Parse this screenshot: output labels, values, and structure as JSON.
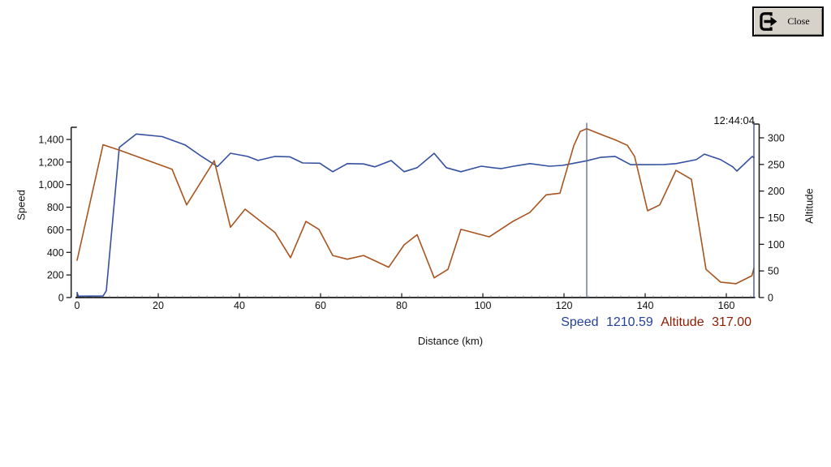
{
  "close_button": {
    "label": "Close"
  },
  "readout": {
    "speed_label": "Speed",
    "speed_value": "1210.59",
    "altitude_label": "Altitude",
    "altitude_value": "317.00"
  },
  "colors": {
    "speed_line": "#34519f",
    "altitude_line": "#a8541f",
    "speed_text": "#24419b",
    "altitude_text": "#8e1c04",
    "cursor_line": "#5c6b89",
    "end_line": "#3d4a72",
    "axis": "#1a1a1a",
    "minor_tick": "#999999",
    "button_face": "#d6d2ca"
  },
  "chart_data": {
    "type": "line",
    "timestamp": "12:44:04",
    "xlabel": "Distance (km)",
    "ylabel_left": "Speed",
    "ylabel_right": "Altitude",
    "grid": false,
    "legend": "none",
    "x_axis": {
      "min": 0,
      "max": 167,
      "ticks": [
        0,
        20,
        40,
        60,
        80,
        100,
        120,
        140,
        160
      ],
      "minor_tick_step": 2
    },
    "left_axis": {
      "min": 0,
      "max": 1400,
      "ticks": [
        0,
        200,
        400,
        600,
        800,
        1000,
        1200,
        1400
      ],
      "tick_labels": [
        "0",
        "200",
        "400",
        "600",
        "800",
        "1,000",
        "1,200",
        "1,400"
      ]
    },
    "right_axis": {
      "min": 0,
      "max": 300,
      "ticks": [
        0,
        50,
        100,
        150,
        200,
        250,
        300
      ],
      "tick_labels": [
        "0",
        "50",
        "100",
        "150",
        "200",
        "250",
        "300"
      ]
    },
    "cursor_km": 125.6,
    "end_km": 166.8,
    "cursor_values": {
      "Speed": 1210.59,
      "Altitude": 317.0
    },
    "series": [
      {
        "name": "Speed",
        "axis": "left",
        "color": "#34519f",
        "points": [
          [
            0,
            45
          ],
          [
            0.3,
            12
          ],
          [
            6.4,
            14
          ],
          [
            7.2,
            60
          ],
          [
            10.4,
            1330
          ],
          [
            14.6,
            1448
          ],
          [
            21,
            1425
          ],
          [
            26.6,
            1352
          ],
          [
            30.6,
            1252
          ],
          [
            34.6,
            1160
          ],
          [
            37.8,
            1278
          ],
          [
            42,
            1250
          ],
          [
            44.6,
            1214
          ],
          [
            48.8,
            1250
          ],
          [
            52.4,
            1246
          ],
          [
            55.6,
            1192
          ],
          [
            59.8,
            1190
          ],
          [
            63,
            1114
          ],
          [
            66.6,
            1186
          ],
          [
            70.6,
            1183
          ],
          [
            73.4,
            1157
          ],
          [
            77.4,
            1213
          ],
          [
            80.6,
            1114
          ],
          [
            83.8,
            1150
          ],
          [
            88,
            1277
          ],
          [
            91,
            1150
          ],
          [
            94.6,
            1114
          ],
          [
            99.6,
            1163
          ],
          [
            103,
            1147
          ],
          [
            104.6,
            1142
          ],
          [
            107.6,
            1163
          ],
          [
            111.6,
            1186
          ],
          [
            116.4,
            1163
          ],
          [
            119.6,
            1170
          ],
          [
            123,
            1193
          ],
          [
            125.6,
            1211
          ],
          [
            129,
            1241
          ],
          [
            132.6,
            1250
          ],
          [
            136.4,
            1177
          ],
          [
            140.6,
            1177
          ],
          [
            144.6,
            1178
          ],
          [
            147.6,
            1186
          ],
          [
            152.6,
            1221
          ],
          [
            154.6,
            1270
          ],
          [
            158.6,
            1221
          ],
          [
            161.6,
            1157
          ],
          [
            162.6,
            1120
          ],
          [
            166.4,
            1250
          ],
          [
            166.8,
            1238
          ]
        ]
      },
      {
        "name": "Altitude",
        "axis": "right",
        "color": "#a8541f",
        "points": [
          [
            0,
            70
          ],
          [
            6.4,
            287
          ],
          [
            10.4,
            277
          ],
          [
            23.4,
            241
          ],
          [
            27,
            174
          ],
          [
            33.8,
            257
          ],
          [
            37.8,
            132
          ],
          [
            41.4,
            166
          ],
          [
            48.8,
            122
          ],
          [
            52.6,
            75
          ],
          [
            56.4,
            143
          ],
          [
            59.6,
            128
          ],
          [
            63,
            79
          ],
          [
            66.6,
            72
          ],
          [
            70.6,
            79
          ],
          [
            76.8,
            57
          ],
          [
            80.6,
            99
          ],
          [
            83.8,
            118
          ],
          [
            88,
            37
          ],
          [
            91.4,
            53
          ],
          [
            94.6,
            128
          ],
          [
            101.6,
            114
          ],
          [
            107.4,
            143
          ],
          [
            111.6,
            160
          ],
          [
            115.6,
            193
          ],
          [
            119,
            196
          ],
          [
            122.4,
            285
          ],
          [
            124,
            312
          ],
          [
            125.6,
            317
          ],
          [
            129.6,
            305
          ],
          [
            133,
            295
          ],
          [
            135.6,
            286
          ],
          [
            137.4,
            265
          ],
          [
            140.6,
            163
          ],
          [
            143.6,
            174
          ],
          [
            147.6,
            239
          ],
          [
            151.4,
            222
          ],
          [
            155,
            53
          ],
          [
            158.6,
            29
          ],
          [
            162.4,
            26
          ],
          [
            166.3,
            41
          ],
          [
            166.8,
            55
          ]
        ]
      }
    ]
  }
}
